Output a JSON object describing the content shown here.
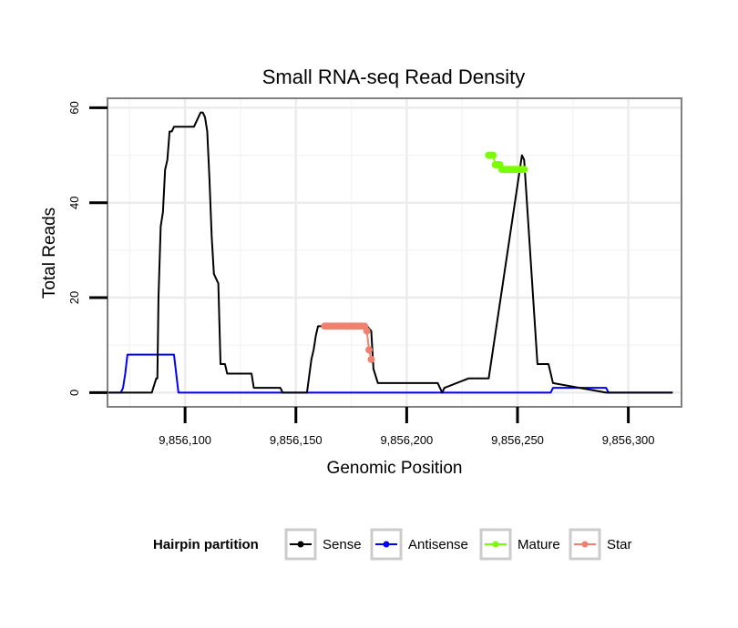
{
  "chart_data": {
    "type": "line",
    "title": "Small RNA-seq Read Density",
    "xlabel": "Genomic Position",
    "ylabel": "Total Reads",
    "xlim": [
      9856065,
      9856324
    ],
    "ylim": [
      -3,
      62
    ],
    "x_ticks": [
      9856100,
      9856150,
      9856200,
      9856250,
      9856300
    ],
    "x_tick_labels": [
      "9,856,100",
      "9,856,150",
      "9,856,200",
      "9,856,250",
      "9,856,300"
    ],
    "y_ticks": [
      0,
      20,
      40,
      60
    ],
    "y_tick_labels": [
      "0",
      "20",
      "40",
      "60"
    ],
    "grid": true,
    "legend": {
      "title": "Hairpin partition",
      "position": "bottom",
      "entries": [
        {
          "name": "Sense",
          "color": "#000000"
        },
        {
          "name": "Antisense",
          "color": "#0000FF"
        },
        {
          "name": "Mature",
          "color": "#7CFC00"
        },
        {
          "name": "Star",
          "color": "#F08070"
        }
      ]
    },
    "series": [
      {
        "name": "Sense",
        "color": "#000000",
        "style": "line",
        "x": [
          9856065,
          9856075,
          9856085,
          9856087,
          9856087.5,
          9856088,
          9856089,
          9856090,
          9856091,
          9856092,
          9856093,
          9856094,
          9856095,
          9856096,
          9856097,
          9856098,
          9856099,
          9856100,
          9856101,
          9856102,
          9856103,
          9856104,
          9856105,
          9856106,
          9856107,
          9856108,
          9856109,
          9856110,
          9856111,
          9856112,
          9856113,
          9856114,
          9856115,
          9856116,
          9856118,
          9856119,
          9856121,
          9856122,
          9856130,
          9856131,
          9856143,
          9856144,
          9856155,
          9856157,
          9856158,
          9856159,
          9856160,
          9856182,
          9856184,
          9856185,
          9856187,
          9856203,
          9856214,
          9856215,
          9856216,
          9856217,
          9856228,
          9856235,
          9856237,
          9856252,
          9856253,
          9856259,
          9856264,
          9856266,
          9856290,
          9856300,
          9856320
        ],
        "y": [
          0,
          0,
          0,
          3,
          3,
          20,
          35,
          38,
          47,
          49,
          55,
          55,
          56,
          56,
          56,
          56,
          56,
          56,
          56,
          56,
          56,
          56,
          57,
          58,
          59,
          59,
          58,
          55,
          45,
          33,
          25,
          24,
          23,
          6,
          6,
          4,
          4,
          4,
          4,
          1,
          1,
          0,
          0,
          7,
          9,
          12,
          14,
          14,
          13,
          5,
          2,
          2,
          2,
          1,
          0,
          1,
          3,
          3,
          3,
          50,
          49,
          6,
          6,
          2,
          0,
          0,
          0
        ]
      },
      {
        "name": "Antisense",
        "color": "#0000FF",
        "style": "line",
        "x": [
          9856065,
          9856071,
          9856072,
          9856073,
          9856074,
          9856076,
          9856095,
          9856096,
          9856097,
          9856265,
          9856266,
          9856290,
          9856291,
          9856320
        ],
        "y": [
          0,
          0,
          1,
          4,
          8,
          8,
          8,
          4,
          0,
          0,
          1,
          1,
          0,
          0
        ]
      },
      {
        "name": "Mature",
        "color": "#7CFC00",
        "style": "points",
        "x": [
          9856237,
          9856238,
          9856239,
          9856240,
          9856241,
          9856242,
          9856243,
          9856244,
          9856245,
          9856246,
          9856247,
          9856248,
          9856249,
          9856250,
          9856251,
          9856252,
          9856253
        ],
        "y": [
          50,
          50,
          50,
          48,
          48,
          48,
          47,
          47,
          47,
          47,
          47,
          47,
          47,
          47,
          47,
          47,
          47
        ]
      },
      {
        "name": "Star",
        "color": "#F08070",
        "style": "points",
        "x": [
          9856163,
          9856164,
          9856165,
          9856166,
          9856167,
          9856168,
          9856169,
          9856170,
          9856171,
          9856172,
          9856173,
          9856174,
          9856175,
          9856176,
          9856177,
          9856178,
          9856179,
          9856180,
          9856181,
          9856182,
          9856183,
          9856184
        ],
        "y": [
          14,
          14,
          14,
          14,
          14,
          14,
          14,
          14,
          14,
          14,
          14,
          14,
          14,
          14,
          14,
          14,
          14,
          14,
          14,
          13,
          9,
          7
        ]
      }
    ]
  }
}
